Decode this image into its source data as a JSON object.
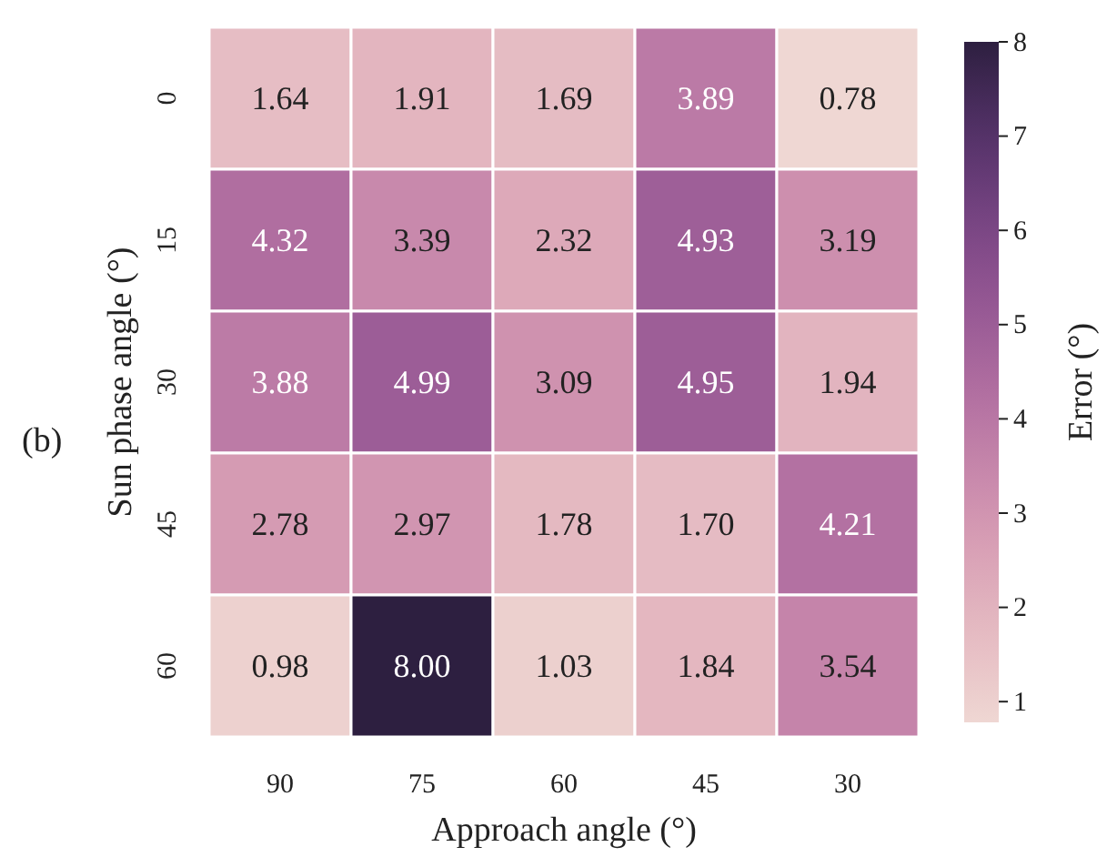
{
  "chart_data": {
    "type": "heatmap",
    "xlabel": "Approach angle (°)",
    "ylabel": "Sun phase angle (°)",
    "clabel": "Error (°)",
    "annotations": [
      "(b)"
    ],
    "categories": [
      "90",
      "75",
      "60",
      "45",
      "30"
    ],
    "y_categories": [
      "0",
      "15",
      "30",
      "45",
      "60"
    ],
    "cells": [
      [
        1.64,
        1.91,
        1.69,
        3.89,
        0.78
      ],
      [
        4.32,
        3.39,
        2.32,
        4.93,
        3.19
      ],
      [
        3.88,
        4.99,
        3.09,
        4.95,
        1.94
      ],
      [
        2.78,
        2.97,
        1.78,
        1.7,
        4.21
      ],
      [
        0.98,
        8.0,
        1.03,
        1.84,
        3.54
      ]
    ],
    "cell_labels": [
      [
        "1.64",
        "1.91",
        "1.69",
        "3.89",
        "0.78"
      ],
      [
        "4.32",
        "3.39",
        "2.32",
        "4.93",
        "3.19"
      ],
      [
        "3.88",
        "4.99",
        "3.09",
        "4.95",
        "1.94"
      ],
      [
        "2.78",
        "2.97",
        "1.78",
        "1.70",
        "4.21"
      ],
      [
        "0.98",
        "8.00",
        "1.03",
        "1.84",
        "3.54"
      ]
    ],
    "clim": [
      0.78,
      8
    ],
    "cticks": [
      1,
      2,
      3,
      4,
      5,
      6,
      7,
      8
    ]
  }
}
